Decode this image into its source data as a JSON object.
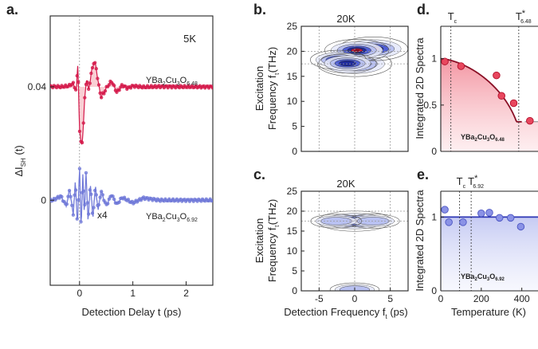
{
  "panel_labels": {
    "a": "a.",
    "b": "b.",
    "c": "c.",
    "d": "d.",
    "e": "e."
  },
  "colors": {
    "red": "#d4184a",
    "blue": "#6f78d8",
    "red_light": "#f6b5bd",
    "blue_light": "#d7dbf6",
    "grid": "#999999"
  },
  "chart_data": [
    {
      "id": "a",
      "type": "line",
      "title": "5K",
      "xlabel": "Detection Delay t (ps)",
      "ylabel": "ΔI_SH (t)",
      "ylabel_main": "ΔI",
      "ylabel_sub": "SH",
      "ylabel_tail": " (t)",
      "xlim": [
        -0.55,
        2.5
      ],
      "ylim": [
        -0.03,
        0.065
      ],
      "xticks": [
        0,
        1,
        2
      ],
      "xtick_labels": [
        "0",
        "1",
        "2"
      ],
      "yticks": [
        0,
        0.04
      ],
      "ytick_labels": [
        "0",
        "0.04"
      ],
      "annotation": "x4",
      "series": [
        {
          "name": "YBa2Cu3O6.48",
          "label_main": "YBa",
          "label_sub1": "2",
          "label_mid": "Cu",
          "label_sub2": "3",
          "label_tail": "O",
          "label_sub3": "6.48",
          "color": "#d4184a",
          "baseline": 0.04,
          "x": [
            -0.5,
            -0.35,
            -0.2,
            -0.12,
            -0.06,
            -0.03,
            0.0,
            0.03,
            0.05,
            0.07,
            0.1,
            0.13,
            0.17,
            0.22,
            0.27,
            0.32,
            0.36,
            0.4,
            0.45,
            0.5,
            0.6,
            0.7,
            0.8,
            0.9,
            1.0,
            1.2,
            1.5,
            2.0,
            2.5
          ],
          "y": [
            0.0401,
            0.04,
            0.0403,
            0.0412,
            0.0385,
            0.0488,
            0.0245,
            0.0195,
            0.021,
            0.0255,
            0.0365,
            0.043,
            0.039,
            0.0445,
            0.0492,
            0.046,
            0.0405,
            0.0365,
            0.0375,
            0.0395,
            0.0421,
            0.038,
            0.0406,
            0.0395,
            0.0403,
            0.0399,
            0.0401,
            0.04,
            0.04
          ]
        },
        {
          "name": "YBa2Cu3O6.92",
          "label_main": "YBa",
          "label_sub1": "2",
          "label_mid": "Cu",
          "label_sub2": "3",
          "label_tail": "O",
          "label_sub3": "6.92",
          "color": "#6f78d8",
          "baseline": 0.0,
          "x": [
            -0.5,
            -0.35,
            -0.25,
            -0.18,
            -0.12,
            -0.08,
            -0.04,
            0.0,
            0.03,
            0.06,
            0.09,
            0.12,
            0.16,
            0.2,
            0.25,
            0.3,
            0.35,
            0.4,
            0.5,
            0.6,
            0.7,
            0.8,
            1.0,
            1.2,
            1.5,
            2.0,
            2.5
          ],
          "y": [
            0.0,
            0.0015,
            -0.002,
            0.004,
            -0.006,
            0.007,
            -0.009,
            0.012,
            -0.0105,
            0.01,
            -0.006,
            0.011,
            -0.008,
            0.006,
            -0.006,
            0.005,
            -0.004,
            0.0035,
            -0.002,
            0.002,
            -0.0015,
            0.001,
            -0.001,
            0.0008,
            0.0,
            0.0,
            0.0
          ]
        }
      ]
    },
    {
      "id": "b",
      "type": "heatmap",
      "title": "20K",
      "ylabel_top": "Excitation",
      "ylabel_bottom": "Frequency f",
      "ylabel_sub": "τ",
      "ylabel_tail": "(THz)",
      "xlim": [
        -7.5,
        7.5
      ],
      "ylim": [
        0,
        25
      ],
      "yticks": [
        0,
        5,
        10,
        15,
        20,
        25
      ],
      "ytick_labels": [
        "0",
        "5",
        "10",
        "15",
        "20",
        "25"
      ],
      "grid_x": [
        -5,
        0,
        5
      ],
      "grid_y": [
        17.5,
        20
      ],
      "peaks": [
        {
          "x": 0.0,
          "y": 17.5,
          "amp": 1.0
        },
        {
          "x": 2.6,
          "y": 20.5,
          "amp": 0.85
        },
        {
          "x": 0.3,
          "y": 20.2,
          "amp": 0.7
        },
        {
          "x": -2.3,
          "y": 18.3,
          "amp": 0.45
        },
        {
          "x": -1.0,
          "y": 17.6,
          "amp": 0.5
        }
      ]
    },
    {
      "id": "c",
      "type": "heatmap",
      "title": "20K",
      "xlabel": "Detection Frequency f_t (ps)",
      "xlabel_main": "Detection Frequency f",
      "xlabel_sub": "t",
      "xlabel_tail": " (ps)",
      "ylabel_top": "Excitation",
      "ylabel_bottom": "Frequency f",
      "ylabel_sub": "τ",
      "ylabel_tail": "(THz)",
      "xlim": [
        -7.5,
        7.5
      ],
      "ylim": [
        0,
        25
      ],
      "xticks": [
        -5,
        0,
        5
      ],
      "xtick_labels": [
        "-5",
        "0",
        "5"
      ],
      "yticks": [
        0,
        5,
        10,
        15,
        20,
        25
      ],
      "ytick_labels": [
        "0",
        "5",
        "10",
        "15",
        "20",
        "25"
      ],
      "grid_x": [
        -5,
        0,
        5
      ],
      "grid_y": [
        17.5,
        20
      ],
      "peaks": [
        {
          "x": 0.0,
          "y": 17.5,
          "amp": 1.0
        },
        {
          "x": 2.6,
          "y": 17.5,
          "amp": 0.35
        },
        {
          "x": -2.6,
          "y": 17.5,
          "amp": 0.3
        },
        {
          "x": 0.0,
          "y": 0.3,
          "amp": 0.25
        }
      ]
    },
    {
      "id": "d",
      "type": "scatter",
      "ylabel": "Integrated 2D Spectra",
      "xlim": [
        0,
        480
      ],
      "ylim": [
        0,
        1.35
      ],
      "yticks": [
        0,
        0.5,
        1
      ],
      "ytick_labels": [
        "0",
        "0.5",
        "1"
      ],
      "vlines": [
        {
          "x": 50,
          "label": "T",
          "sub": "c",
          "sup": ""
        },
        {
          "x": 385,
          "label": "T",
          "sub": "6.48",
          "sup": "*"
        }
      ],
      "series_label_main": "YBa",
      "series_label_sub1": "2",
      "series_label_mid": "Cu",
      "series_label_sub2": "3",
      "series_label_tail": "O",
      "series_label_sub3": "6.48",
      "fit": {
        "t0": 400,
        "amp": 1.0,
        "tail": 0.32
      },
      "x": [
        20,
        100,
        275,
        300,
        360,
        440
      ],
      "y": [
        0.97,
        0.92,
        0.82,
        0.6,
        0.52,
        0.33
      ],
      "color": "#d4184a"
    },
    {
      "id": "e",
      "type": "scatter",
      "xlabel": "Temperature (K)",
      "ylabel": "Integrated 2D Spectra",
      "xlim": [
        0,
        480
      ],
      "ylim": [
        0,
        1.35
      ],
      "xticks": [
        0,
        200,
        400
      ],
      "xtick_labels": [
        "0",
        "200",
        "400"
      ],
      "yticks": [
        0,
        1
      ],
      "ytick_labels": [
        "0",
        "1"
      ],
      "vlines": [
        {
          "x": 93,
          "label": "T",
          "sub": "c",
          "sup": ""
        },
        {
          "x": 150,
          "label": "T",
          "sub": "6.92",
          "sup": "*"
        }
      ],
      "series_label_main": "YBa",
      "series_label_sub1": "2",
      "series_label_mid": "Cu",
      "series_label_sub2": "3",
      "series_label_tail": "O",
      "series_label_sub3": "6.92",
      "fit_level": 1.0,
      "x": [
        20,
        40,
        110,
        200,
        240,
        290,
        345,
        395
      ],
      "y": [
        1.1,
        0.93,
        0.93,
        1.05,
        1.06,
        0.99,
        0.99,
        0.87
      ],
      "color": "#6f78d8"
    }
  ]
}
